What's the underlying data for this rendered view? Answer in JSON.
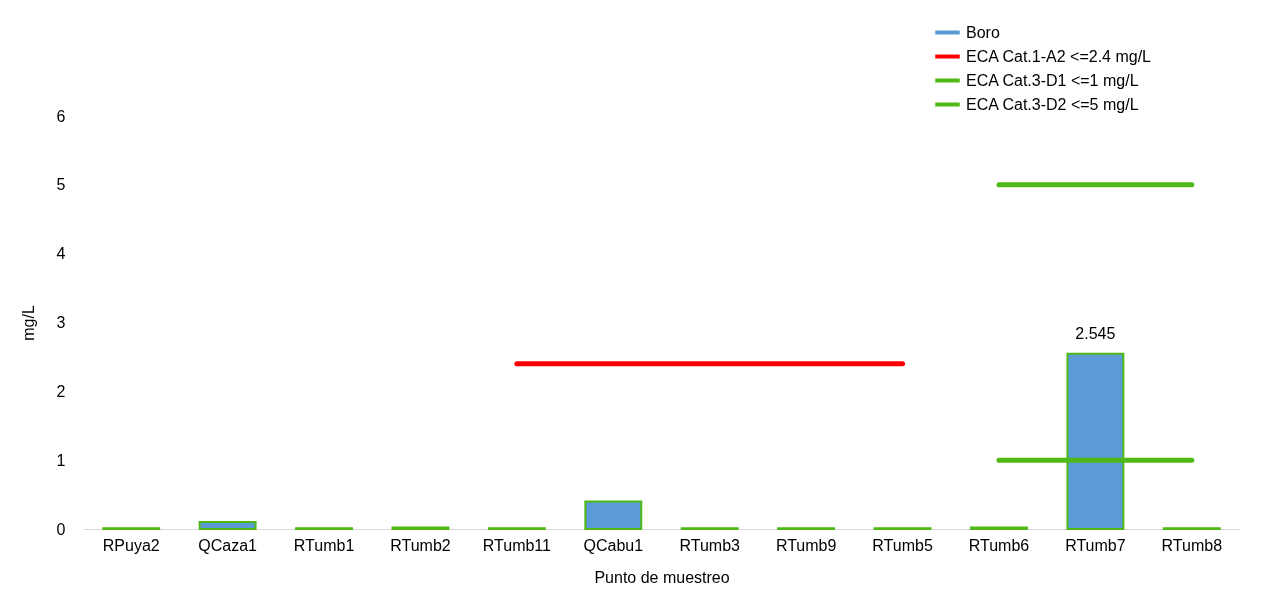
{
  "chart_data": {
    "type": "bar",
    "xlabel": "Punto de muestreo",
    "ylabel": "mg/L",
    "categories": [
      "RPuya2",
      "QCaza1",
      "RTumb1",
      "RTumb2",
      "RTumb11",
      "QCabu1",
      "RTumb3",
      "RTumb9",
      "RTumb5",
      "RTumb6",
      "RTumb7",
      "RTumb8"
    ],
    "series": [
      {
        "name": "Boro",
        "color": "#5b9bd5",
        "values": [
          0.01,
          0.1,
          0.01,
          0.02,
          0.01,
          0.4,
          0.01,
          0.01,
          0.01,
          0.02,
          2.545,
          0.01
        ],
        "value_labels": [
          null,
          null,
          null,
          null,
          null,
          null,
          null,
          null,
          null,
          null,
          "2.545",
          null
        ]
      },
      {
        "name": "ECA Cat.1-A2 <=2.4 mg/L",
        "type": "line",
        "color": "#ff0000",
        "values": [
          null,
          null,
          null,
          null,
          2.4,
          2.4,
          2.4,
          2.4,
          2.4,
          null,
          null,
          null
        ]
      },
      {
        "name": "ECA Cat.3-D1 <=1 mg/L",
        "type": "line",
        "color": "#4eb916",
        "values": [
          null,
          null,
          null,
          null,
          null,
          null,
          null,
          null,
          null,
          1,
          1,
          1
        ]
      },
      {
        "name": "ECA Cat.3-D2 <=5 mg/L",
        "type": "line",
        "color": "#4eb916",
        "values": [
          null,
          null,
          null,
          null,
          null,
          null,
          null,
          null,
          null,
          5,
          5,
          5
        ]
      }
    ],
    "ylim": [
      0,
      6
    ],
    "yticks": [
      0,
      1,
      2,
      3,
      4,
      5,
      6
    ],
    "grid": false,
    "legend": "top right"
  }
}
